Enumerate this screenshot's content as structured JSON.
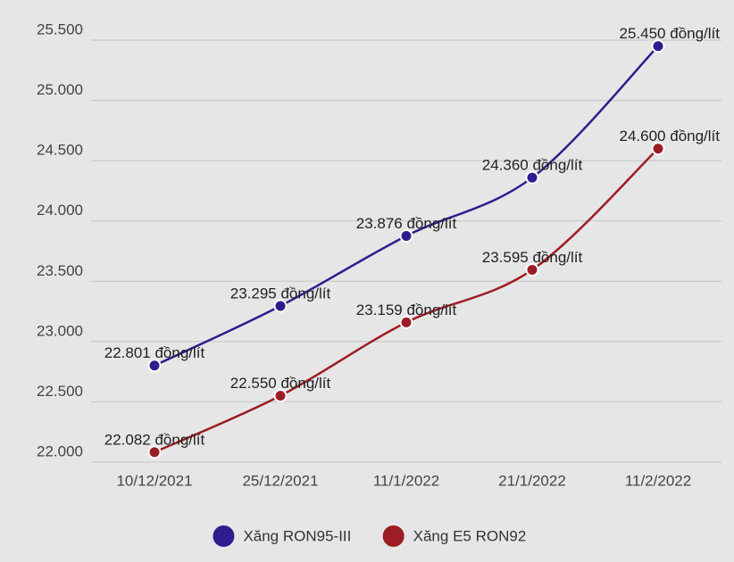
{
  "chart_data": {
    "type": "line",
    "categories": [
      "10/12/2021",
      "25/12/2021",
      "11/1/2022",
      "21/1/2022",
      "11/2/2022"
    ],
    "series": [
      {
        "name": "Xăng RON95-III",
        "color": "#2e1d8e",
        "values": [
          22801,
          23295,
          23876,
          24360,
          25450
        ],
        "value_labels": [
          "22.801 đồng/lít",
          "23.295 đồng/lít",
          "23.876 đồng/lít",
          "24.360 đồng/lít",
          "25.450 đồng/lít"
        ]
      },
      {
        "name": "Xăng E5 RON92",
        "color": "#9c1d24",
        "values": [
          22082,
          22550,
          23159,
          23595,
          24600
        ],
        "value_labels": [
          "22.082 đồng/lít",
          "22.550 đồng/lít",
          "23.159 đồng/lít",
          "23.595 đồng/lít",
          "24.600 đồng/lít"
        ]
      }
    ],
    "ylim": [
      22000,
      25500
    ],
    "yticks": [
      {
        "value": 22000,
        "label": "22.000"
      },
      {
        "value": 22500,
        "label": "22.500"
      },
      {
        "value": 23000,
        "label": "23.000"
      },
      {
        "value": 23500,
        "label": "23.500"
      },
      {
        "value": 24000,
        "label": "24.000"
      },
      {
        "value": 24500,
        "label": "24.500"
      },
      {
        "value": 25000,
        "label": "25.000"
      },
      {
        "value": 25500,
        "label": "25.500"
      }
    ],
    "grid": true,
    "smooth": true,
    "legend": "bottom"
  }
}
